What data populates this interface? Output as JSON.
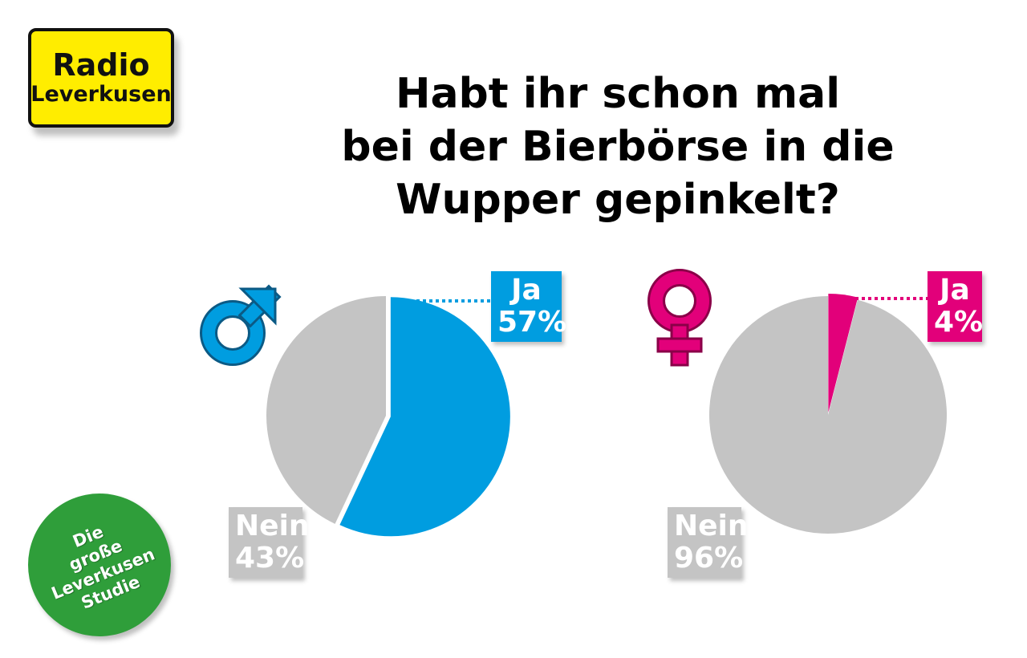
{
  "logo": {
    "line1": "Radio",
    "line2": "Leverkusen"
  },
  "title": {
    "lines": [
      "Habt ihr schon mal",
      "bei der Bierbörse in die",
      "Wupper gepinkelt?"
    ]
  },
  "badge": {
    "lines": [
      "Die",
      "große",
      "Leverkusen",
      "Studie"
    ]
  },
  "colors": {
    "male": "#009de0",
    "female": "#e2007a",
    "nein": "#c4c4c4",
    "logo_bg": "#ffed00",
    "badge_bg": "#2f9e3a"
  },
  "chart_data": [
    {
      "type": "pie",
      "title": "",
      "group": "male",
      "icon": "male-symbol-icon",
      "slices": [
        {
          "label": "Ja",
          "value": 57,
          "display": "57%"
        },
        {
          "label": "Nein",
          "value": 43,
          "display": "43%"
        }
      ]
    },
    {
      "type": "pie",
      "title": "",
      "group": "female",
      "icon": "female-symbol-icon",
      "slices": [
        {
          "label": "Ja",
          "value": 4,
          "display": "4%"
        },
        {
          "label": "Nein",
          "value": 96,
          "display": "96%"
        }
      ]
    }
  ]
}
